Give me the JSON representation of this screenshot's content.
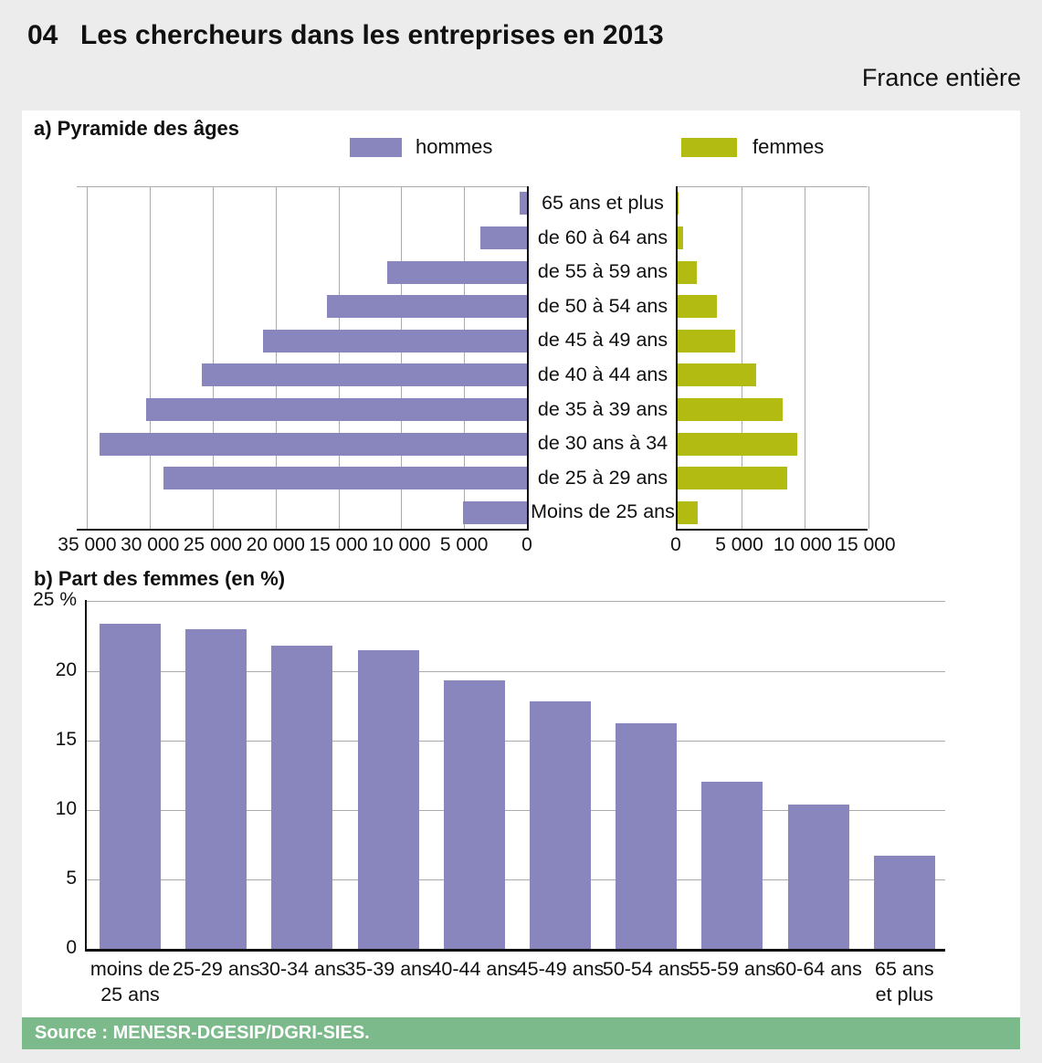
{
  "header": {
    "number": "04",
    "title": "Les chercheurs dans les entreprises en 2013",
    "region": "France entière"
  },
  "footer": {
    "source": "Source : MENESR-DGESIP/DGRI-SIES."
  },
  "colors": {
    "hommes": "#8986bd",
    "femmes": "#b2bb12",
    "footer_green": "#7cba8c",
    "background": "#ececec",
    "panel": "#ffffff",
    "grid": "#ababab",
    "axis": "#111111"
  },
  "chart_data": [
    {
      "id": "pyramide-des-ages",
      "type": "bar",
      "orientation": "horizontal-pyramid",
      "title": "a) Pyramide des âges",
      "legend": [
        {
          "name": "hommes",
          "color": "#8986bd"
        },
        {
          "name": "femmes",
          "color": "#b2bb12"
        }
      ],
      "categories_top_to_bottom": [
        "65 ans et plus",
        "de 60 à 64 ans",
        "de 55 à 59 ans",
        "de 50 à 54 ans",
        "de 45 à 49 ans",
        "de 40 à 44 ans",
        "de 35 à 39 ans",
        "de 30 ans à 34",
        "de 25 à 29 ans",
        "Moins de 25 ans"
      ],
      "series": [
        {
          "name": "hommes",
          "direction": "right-to-left",
          "axis_max": 35000,
          "axis_ticks": [
            "35 000",
            "30 000",
            "25 000",
            "20 000",
            "15 000",
            "10 000",
            "5 000",
            "0"
          ],
          "values": [
            600,
            3700,
            11100,
            15900,
            21000,
            25900,
            30300,
            34000,
            28900,
            5100
          ]
        },
        {
          "name": "femmes",
          "direction": "left-to-right",
          "axis_max": 15000,
          "axis_ticks": [
            "0",
            "5 000",
            "10 000",
            "15 000"
          ],
          "values": [
            45,
            430,
            1520,
            3070,
            4550,
            6200,
            8300,
            9450,
            8650,
            1550
          ]
        }
      ],
      "grid": true
    },
    {
      "id": "part-des-femmes",
      "type": "bar",
      "title": "b) Part des femmes (en %)",
      "categories": [
        [
          "moins de",
          "25 ans"
        ],
        [
          "25-29 ans"
        ],
        [
          "30-34 ans"
        ],
        [
          "35-39 ans"
        ],
        [
          "40-44 ans"
        ],
        [
          "45-49 ans"
        ],
        [
          "50-54 ans"
        ],
        [
          "55-59 ans"
        ],
        [
          "60-64 ans"
        ],
        [
          "65 ans",
          "et plus"
        ]
      ],
      "values": [
        23.4,
        23.0,
        21.8,
        21.5,
        19.3,
        17.8,
        16.2,
        12.0,
        10.4,
        6.7
      ],
      "y_ticks": [
        "25 %",
        "20",
        "15",
        "10",
        "5",
        "0"
      ],
      "ylim": [
        0,
        25
      ],
      "grid": true,
      "bar_color": "#8986bd"
    }
  ]
}
